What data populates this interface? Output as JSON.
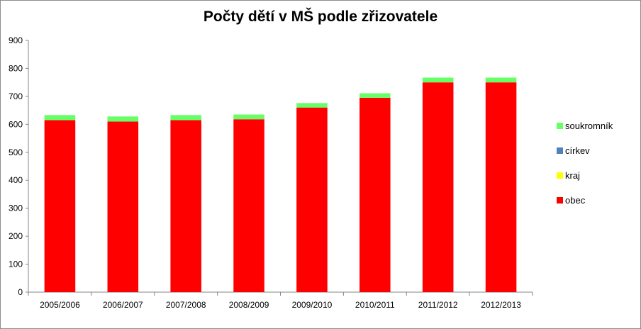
{
  "chart_data": {
    "type": "bar",
    "stacked": true,
    "title": "Počty dětí v MŠ podle zřizovatele",
    "xlabel": "",
    "ylabel": "",
    "ylim": [
      0,
      900
    ],
    "yticks": [
      0,
      100,
      200,
      300,
      400,
      500,
      600,
      700,
      800,
      900
    ],
    "grid": false,
    "legend_position": "right",
    "categories": [
      "2005/2006",
      "2006/2007",
      "2007/2008",
      "2008/2009",
      "2009/2010",
      "2010/2011",
      "2011/2012",
      "2012/2013"
    ],
    "series": [
      {
        "name": "obec",
        "color": "#ff0000",
        "values": [
          615,
          610,
          615,
          618,
          660,
          695,
          750,
          750
        ]
      },
      {
        "name": "kraj",
        "color": "#ffff00",
        "values": [
          0,
          0,
          0,
          0,
          0,
          0,
          0,
          0
        ]
      },
      {
        "name": "církev",
        "color": "#4f81bd",
        "values": [
          0,
          0,
          0,
          0,
          0,
          0,
          0,
          0
        ]
      },
      {
        "name": "soukromník",
        "color": "#66ff66",
        "values": [
          18,
          18,
          18,
          17,
          16,
          16,
          17,
          17
        ]
      }
    ],
    "legend_order": [
      "soukromník",
      "církev",
      "kraj",
      "obec"
    ]
  }
}
